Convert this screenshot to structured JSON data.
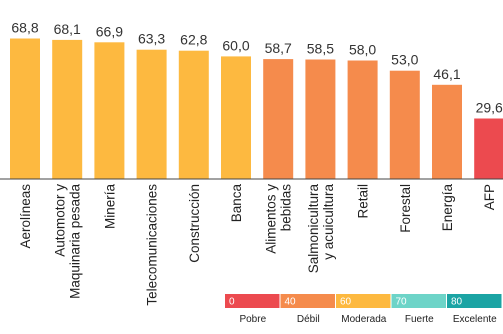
{
  "chart_data": {
    "type": "bar",
    "categories": [
      [
        "Aerolíneas"
      ],
      [
        "Automotor y",
        "Maquinaria pesada"
      ],
      [
        "Minería"
      ],
      [
        "Telecomunicaciones"
      ],
      [
        "Construcción"
      ],
      [
        "Banca"
      ],
      [
        "Alimentos y",
        "bebidas"
      ],
      [
        "Salmonicultura",
        "y acuicultura"
      ],
      [
        "Retail"
      ],
      [
        "Forestal"
      ],
      [
        "Energía"
      ],
      [
        "AFP"
      ]
    ],
    "values": [
      68.8,
      68.1,
      66.9,
      63.3,
      62.8,
      60.0,
      58.7,
      58.5,
      58.0,
      53.0,
      46.1,
      29.6
    ],
    "value_labels": [
      "68,8",
      "68,1",
      "66,9",
      "63,3",
      "62,8",
      "60,0",
      "58,7",
      "58,5",
      "58,0",
      "53,0",
      "46,1",
      "29,6"
    ],
    "bar_colors": [
      "#fdb940",
      "#fdb940",
      "#fdb940",
      "#fdb940",
      "#fdb940",
      "#fdb940",
      "#f58b4c",
      "#f58b4c",
      "#f58b4c",
      "#f58b4c",
      "#f58b4c",
      "#ec4a4f"
    ],
    "ylim": [
      0,
      70
    ],
    "legend": [
      {
        "threshold": "0",
        "label": "Pobre",
        "color": "#ec4a4f"
      },
      {
        "threshold": "40",
        "label": "Débil",
        "color": "#f58b4c"
      },
      {
        "threshold": "60",
        "label": "Moderada",
        "color": "#fdb940"
      },
      {
        "threshold": "70",
        "label": "Fuerte",
        "color": "#6dd4c8"
      },
      {
        "threshold": "80",
        "label": "Excelente",
        "color": "#1ba4a4"
      }
    ]
  }
}
